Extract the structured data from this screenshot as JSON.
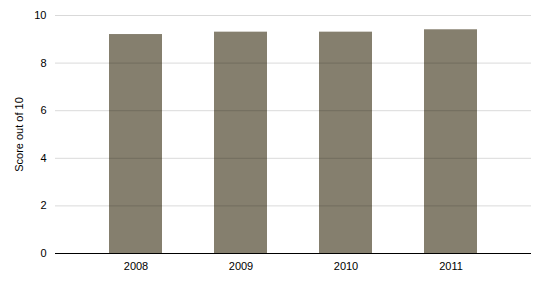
{
  "chart_data": {
    "type": "bar",
    "categories": [
      "2008",
      "2009",
      "2010",
      "2011"
    ],
    "values": [
      9.2,
      9.3,
      9.3,
      9.4
    ],
    "color": "#857f6e",
    "ylabel": "Score out of 10",
    "ylim": [
      0,
      10
    ],
    "yticks": [
      0,
      2,
      4,
      6,
      8,
      10
    ],
    "grid": true
  }
}
